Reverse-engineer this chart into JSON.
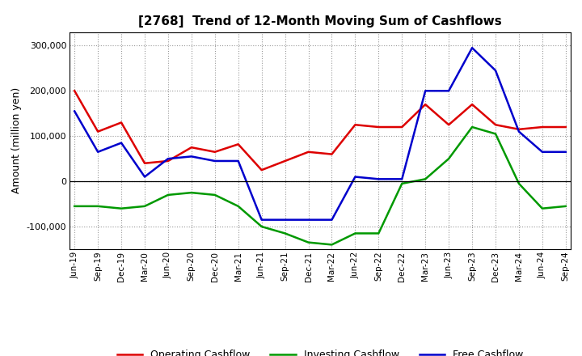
{
  "title": "[2768]  Trend of 12-Month Moving Sum of Cashflows",
  "ylabel": "Amount (million yen)",
  "background_color": "#ffffff",
  "grid_color": "#aaaaaa",
  "x_labels": [
    "Jun-19",
    "Sep-19",
    "Dec-19",
    "Mar-20",
    "Jun-20",
    "Sep-20",
    "Dec-20",
    "Mar-21",
    "Jun-21",
    "Sep-21",
    "Dec-21",
    "Mar-22",
    "Jun-22",
    "Sep-22",
    "Dec-22",
    "Mar-23",
    "Jun-23",
    "Sep-23",
    "Dec-23",
    "Mar-24",
    "Jun-24",
    "Sep-24"
  ],
  "operating": [
    200000,
    110000,
    130000,
    40000,
    45000,
    75000,
    65000,
    82000,
    25000,
    45000,
    65000,
    60000,
    125000,
    120000,
    120000,
    170000,
    125000,
    170000,
    125000,
    115000,
    120000,
    120000
  ],
  "investing": [
    -55000,
    -55000,
    -60000,
    -55000,
    -30000,
    -25000,
    -30000,
    -55000,
    -100000,
    -115000,
    -135000,
    -140000,
    -115000,
    -115000,
    -5000,
    5000,
    50000,
    120000,
    105000,
    -5000,
    -60000,
    -55000
  ],
  "free": [
    155000,
    65000,
    85000,
    10000,
    50000,
    55000,
    45000,
    45000,
    -85000,
    -85000,
    -85000,
    -85000,
    10000,
    5000,
    5000,
    200000,
    200000,
    295000,
    245000,
    110000,
    65000,
    65000
  ],
  "ylim": [
    -150000,
    330000
  ],
  "yticks": [
    -100000,
    0,
    100000,
    200000,
    300000
  ],
  "operating_color": "#dd0000",
  "investing_color": "#009900",
  "free_color": "#0000cc",
  "linewidth": 1.8
}
